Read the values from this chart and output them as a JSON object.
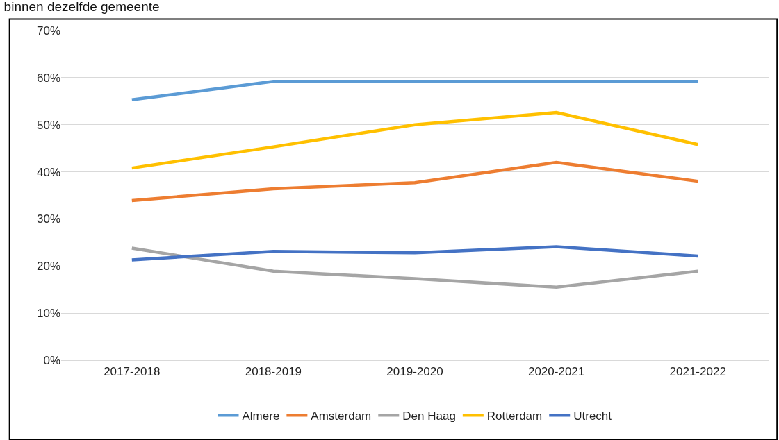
{
  "chart_data": {
    "type": "line",
    "title": "binnen dezelfde gemeente",
    "categories": [
      "2017-2018",
      "2018-2019",
      "2019-2020",
      "2020-2021",
      "2021-2022"
    ],
    "series": [
      {
        "name": "Almere",
        "color": "#5b9bd5",
        "values": [
          55.3,
          59.2,
          59.2,
          59.2,
          59.2
        ]
      },
      {
        "name": "Amsterdam",
        "color": "#ed7d31",
        "values": [
          33.9,
          36.4,
          37.7,
          42.0,
          38.0
        ]
      },
      {
        "name": "Den Haag",
        "color": "#a5a5a5",
        "values": [
          23.8,
          18.9,
          17.3,
          15.5,
          18.9
        ]
      },
      {
        "name": "Rotterdam",
        "color": "#ffc000",
        "values": [
          40.8,
          45.3,
          50.0,
          52.6,
          45.8
        ]
      },
      {
        "name": "Utrecht",
        "color": "#4472c4",
        "values": [
          21.3,
          23.1,
          22.8,
          24.1,
          22.1
        ]
      }
    ],
    "ylim": [
      0,
      70
    ],
    "yticks": [
      {
        "value": 0,
        "label": "0%"
      },
      {
        "value": 10,
        "label": "10%"
      },
      {
        "value": 20,
        "label": "20%"
      },
      {
        "value": 30,
        "label": "30%"
      },
      {
        "value": 40,
        "label": "40%"
      },
      {
        "value": 50,
        "label": "50%"
      },
      {
        "value": 60,
        "label": "60%"
      },
      {
        "value": 70,
        "label": "70%"
      }
    ],
    "grid": "y",
    "legend": "bottom",
    "marker": "none",
    "line_style": "solid"
  }
}
